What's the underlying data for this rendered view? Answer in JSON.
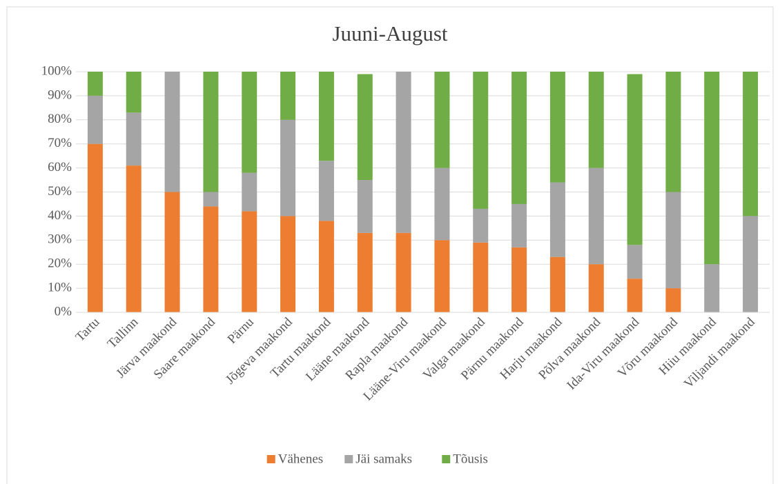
{
  "chart_data": {
    "type": "stacked_bar",
    "title": "Juuni-August",
    "categories": [
      "Tartu",
      "Tallinn",
      "Järva maakond",
      "Saare maakond",
      "Pärnu",
      "Jõgeva maakond",
      "Tartu maakond",
      "Lääne maakond",
      "Rapla maakond",
      "Lääne-Viru maakond",
      "Valga maakond",
      "Pärnu maakond",
      "Harju maakond",
      "Põlva maakond",
      "Ida-Viru maakond",
      "Võru maakond",
      "Hiiu maakond",
      "Viljandi maakond"
    ],
    "series": [
      {
        "name": "Vähenes",
        "color": "#ed7d31",
        "values": [
          70,
          61,
          50,
          44,
          42,
          40,
          38,
          33,
          33,
          30,
          29,
          27,
          23,
          20,
          14,
          10,
          0,
          0
        ]
      },
      {
        "name": "Jäi samaks",
        "color": "#a5a5a5",
        "values": [
          20,
          22,
          50,
          6,
          16,
          40,
          25,
          22,
          67,
          30,
          14,
          18,
          31,
          40,
          14,
          40,
          20,
          40
        ]
      },
      {
        "name": "Tõusis",
        "color": "#70ad47",
        "values": [
          10,
          17,
          0,
          50,
          42,
          20,
          37,
          44,
          0,
          40,
          57,
          55,
          46,
          40,
          71,
          50,
          80,
          60
        ]
      }
    ],
    "ylim": [
      0,
      100
    ],
    "yticks": [
      {
        "value": 0,
        "label": "0%"
      },
      {
        "value": 10,
        "label": "10%"
      },
      {
        "value": 20,
        "label": "20%"
      },
      {
        "value": 30,
        "label": "30%"
      },
      {
        "value": 40,
        "label": "40%"
      },
      {
        "value": 50,
        "label": "50%"
      },
      {
        "value": 60,
        "label": "60%"
      },
      {
        "value": 70,
        "label": "70%"
      },
      {
        "value": 80,
        "label": "80%"
      },
      {
        "value": 90,
        "label": "90%"
      },
      {
        "value": 100,
        "label": "100%"
      }
    ],
    "grid": true,
    "legend": "bottom"
  }
}
